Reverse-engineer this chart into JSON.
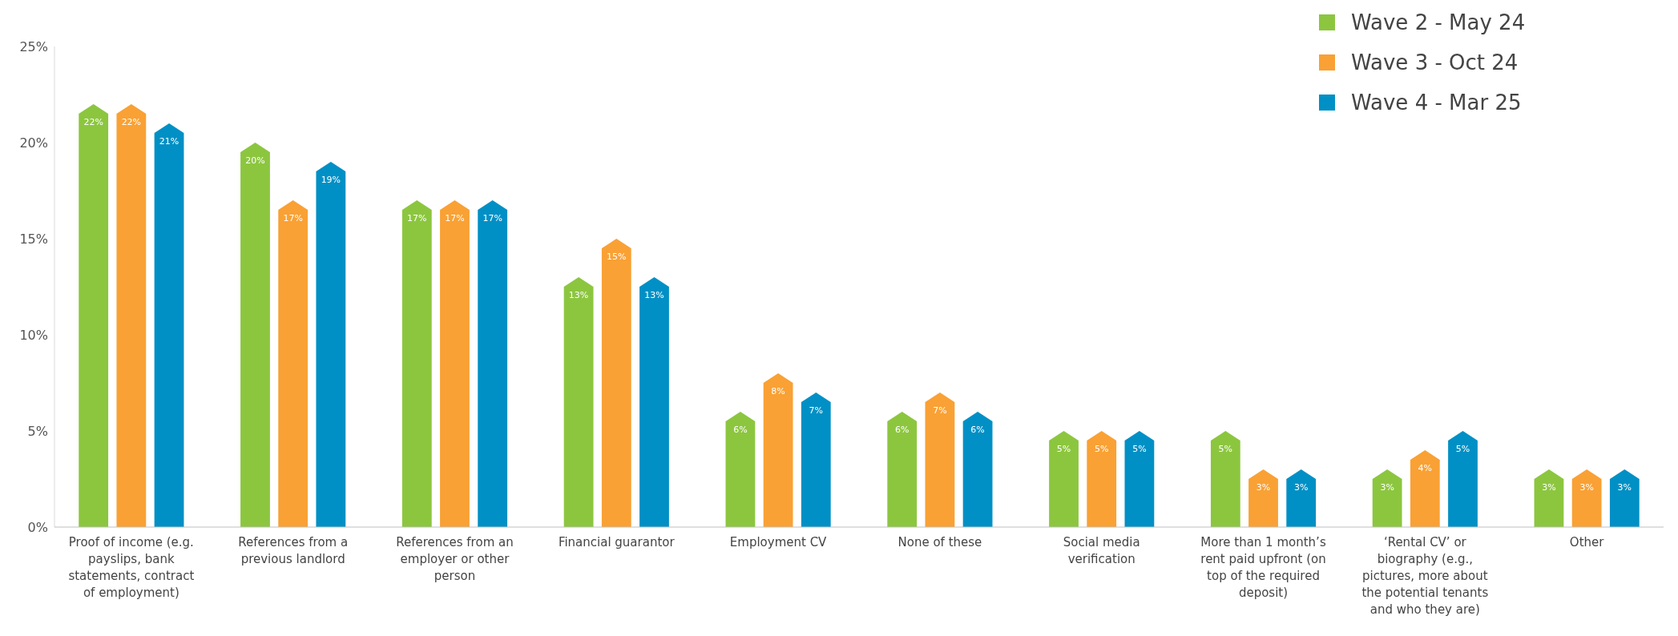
{
  "chart_data": {
    "type": "bar",
    "categories": [
      "Proof of income (e.g. payslips, bank statements, contract of employment)",
      "References from a previous landlord",
      "References from an employer or other person",
      "Financial guarantor",
      "Employment CV",
      "None of these",
      "Social media verification",
      "More than 1 month’s rent paid upfront (on top of the required deposit)",
      "‘Rental CV’ or biography (e.g., pictures, more about the potential tenants and who they are)",
      "Other"
    ],
    "series": [
      {
        "name": "Wave 2 - May 24",
        "color": "#8cc63f",
        "values": [
          22,
          20,
          17,
          13,
          6,
          6,
          5,
          5,
          3,
          3
        ],
        "value_labels": [
          "22%",
          "20%",
          "17%",
          "13%",
          "6%",
          "6%",
          "5%",
          "5%",
          "3%",
          "3%"
        ]
      },
      {
        "name": "Wave 3 - Oct 24",
        "color": "#f9a134",
        "values": [
          22,
          17,
          17,
          15,
          8,
          7,
          5,
          3,
          4,
          3
        ],
        "value_labels": [
          "22%",
          "17%",
          "17%",
          "15%",
          "8%",
          "7%",
          "5%",
          "3%",
          "4%",
          "3%"
        ]
      },
      {
        "name": "Wave 4 - Mar 25",
        "color": "#0090c5",
        "values": [
          21,
          19,
          17,
          13,
          7,
          6,
          5,
          3,
          5,
          3
        ],
        "value_labels": [
          "21%",
          "19%",
          "17%",
          "13%",
          "7%",
          "6%",
          "5%",
          "3%",
          "5%",
          "3%"
        ]
      }
    ],
    "ylim": [
      0,
      25
    ],
    "yticks": [
      {
        "value": 0,
        "label": "0%"
      },
      {
        "value": 5,
        "label": "5%"
      },
      {
        "value": 10,
        "label": "10%"
      },
      {
        "value": 15,
        "label": "15%"
      },
      {
        "value": 20,
        "label": "20%"
      },
      {
        "value": 25,
        "label": "25%"
      }
    ],
    "grid": false,
    "legend": "top right"
  }
}
